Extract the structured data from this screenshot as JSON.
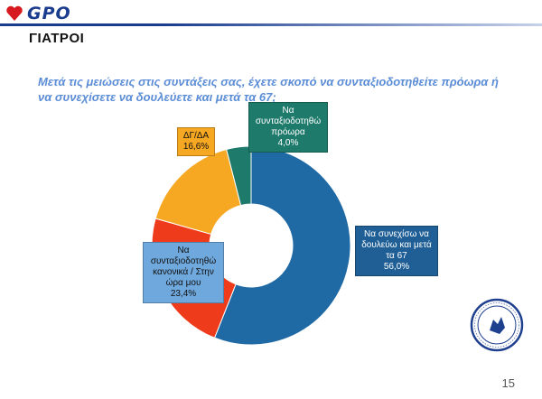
{
  "header": {
    "logo_text": "GPO",
    "logo_icon": "gpo-heart-icon",
    "section_title": "ΓΙΑΤΡΟΙ",
    "accent_color": "#1a3c8f"
  },
  "question": "Μετά τις μειώσεις στις συντάξεις σας, έχετε σκοπό να συνταξιοδοτηθείτε πρόωρα ή να συνεχίσετε να δουλεύετε και μετά τα 67;",
  "footer": {
    "page_number": "15",
    "seal_icon": "association-seal-icon"
  },
  "chart_data": {
    "type": "pie",
    "title": "",
    "donut": true,
    "categories": [
      "Να συνεχίσω να δουλεύω και μετά τα 67",
      "Να συνταξιοδοτηθώ κανονικά / Στην ώρα μου",
      "ΔΓ/ΔΑ",
      "Να συνταξιοδοτηθώ πρόωρα"
    ],
    "values": [
      56.0,
      23.4,
      16.6,
      4.0
    ],
    "value_labels": [
      "56,0%",
      "23,4%",
      "16,6%",
      "4,0%"
    ],
    "colors": [
      "#1f6aa5",
      "#ee3b1b",
      "#f7a823",
      "#1e7a6b"
    ],
    "start_angle_deg": 0,
    "direction": "clockwise"
  }
}
